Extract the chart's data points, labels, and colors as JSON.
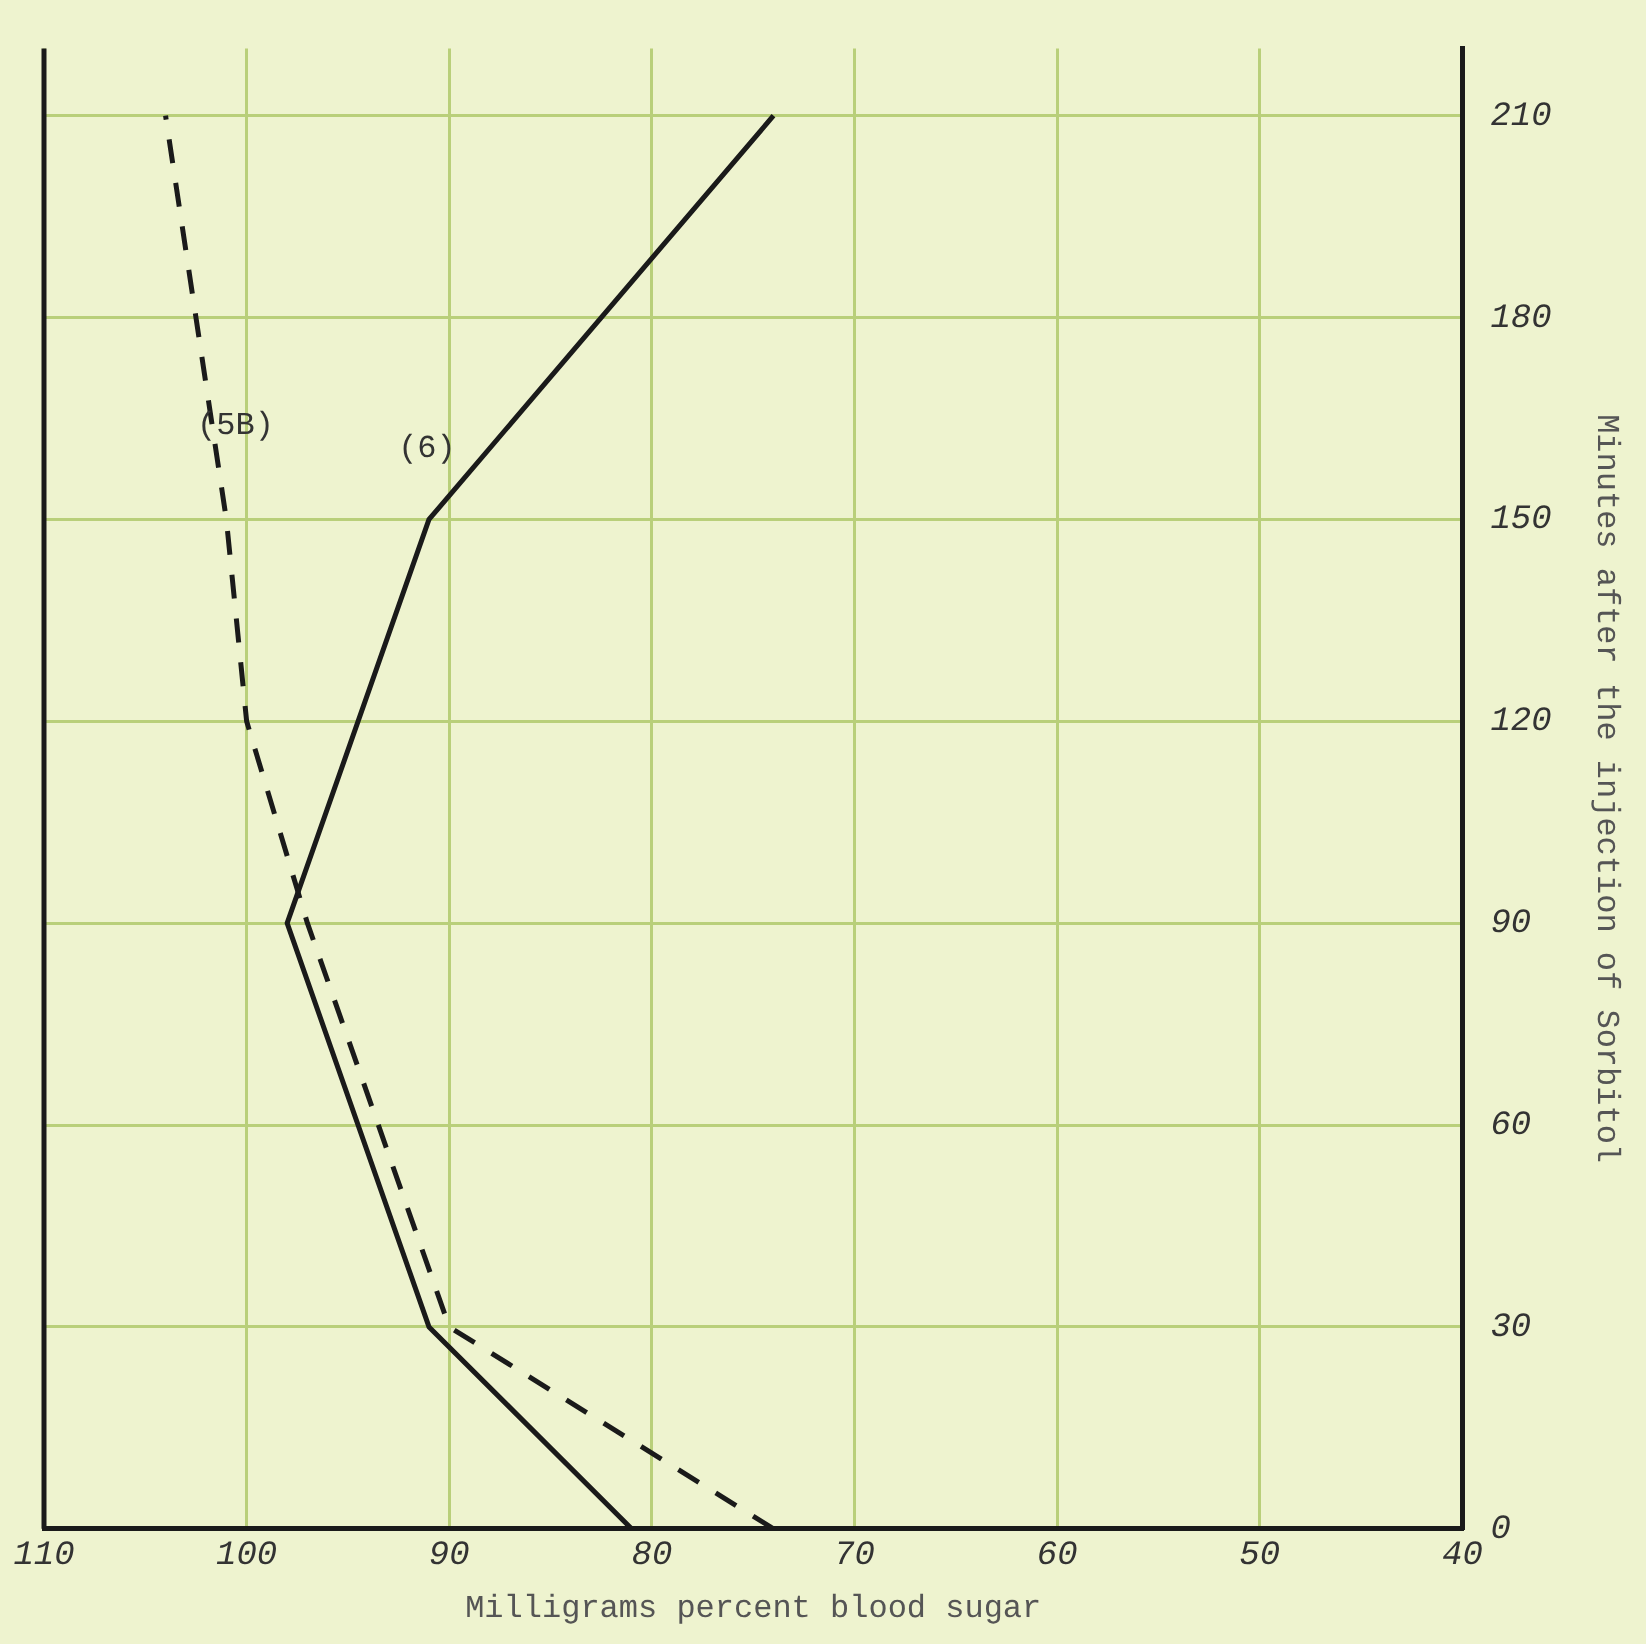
{
  "chart_data": {
    "type": "line",
    "xlabel": "Milligrams percent blood sugar",
    "ylabel": "Minutes after the injection of Sorbitol",
    "xlim": [
      110,
      40
    ],
    "xticks": [
      110,
      100,
      90,
      80,
      70,
      60,
      50,
      40
    ],
    "ylim": [
      0,
      220
    ],
    "yticks": [
      0,
      30,
      60,
      90,
      120,
      150,
      180,
      210
    ],
    "series": [
      {
        "color": "#1a1a1a",
        "line_style": "solid",
        "x": [
          81,
          91,
          98,
          91,
          74
        ],
        "values": [
          0,
          30,
          90,
          150,
          210
        ]
      },
      {
        "color": "#1a1a1a",
        "line_style": "dashed",
        "x": [
          74,
          90,
          97,
          100,
          101,
          104
        ],
        "values": [
          0,
          30,
          90,
          120,
          150,
          210
        ]
      }
    ],
    "annotations": [
      "(5B)",
      "(6)"
    ],
    "grid": true,
    "legend": false,
    "marker": "none"
  }
}
